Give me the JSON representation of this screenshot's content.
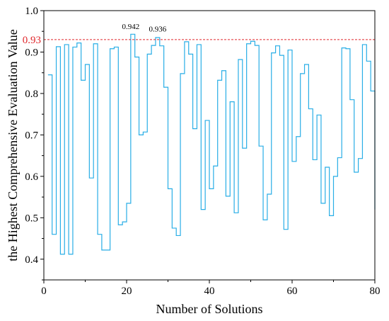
{
  "chart_data": {
    "type": "line",
    "step": true,
    "xlabel": "Number of Solutions",
    "ylabel": "the Highest Comprehensive Evaluation Value",
    "xlim": [
      0,
      80
    ],
    "ylim": [
      0.35,
      1.0
    ],
    "xticks": [
      "0",
      "20",
      "40",
      "60",
      "80"
    ],
    "yticks": [
      "0.4",
      "0.5",
      "0.6",
      "0.7",
      "0.8",
      "0.9",
      "1.0"
    ],
    "xtick_values": [
      0,
      20,
      40,
      60,
      80
    ],
    "ytick_values": [
      0.4,
      0.5,
      0.6,
      0.7,
      0.8,
      0.9,
      1.0
    ],
    "grid": false,
    "line_color": "#29aee6",
    "reference_line": {
      "value": 0.93,
      "label": "0.93",
      "color": "#e0282c"
    },
    "annotations": [
      {
        "text": "0.942",
        "x": 21,
        "y": 0.942
      },
      {
        "text": "0.936",
        "x": 27.5,
        "y": 0.936
      }
    ],
    "series": [
      {
        "x": [
          1,
          2,
          3,
          4,
          5,
          6,
          7,
          8,
          9,
          10,
          11,
          12,
          13,
          14,
          15,
          16,
          17,
          18,
          19,
          20,
          21,
          22,
          23,
          24,
          25,
          26,
          27,
          28,
          29,
          30,
          31,
          32,
          33,
          34,
          35,
          36,
          37,
          38,
          39,
          40,
          41,
          42,
          43,
          44,
          45,
          46,
          47,
          48,
          49,
          50,
          51,
          52,
          53,
          54,
          55,
          56,
          57,
          58,
          59,
          60,
          61,
          62,
          63,
          64,
          65,
          66,
          67,
          68,
          69,
          70,
          71,
          72,
          73,
          74,
          75,
          76,
          77,
          78,
          79,
          80
        ],
        "values": [
          0.845,
          0.46,
          0.913,
          0.412,
          0.918,
          0.412,
          0.912,
          0.922,
          0.832,
          0.87,
          0.596,
          0.92,
          0.46,
          0.422,
          0.422,
          0.908,
          0.912,
          0.483,
          0.49,
          0.535,
          0.943,
          0.888,
          0.7,
          0.707,
          0.895,
          0.916,
          0.935,
          0.915,
          0.815,
          0.57,
          0.475,
          0.457,
          0.848,
          0.925,
          0.895,
          0.715,
          0.918,
          0.52,
          0.735,
          0.57,
          0.625,
          0.832,
          0.855,
          0.552,
          0.78,
          0.512,
          0.882,
          0.668,
          0.92,
          0.926,
          0.916,
          0.673,
          0.495,
          0.557,
          0.898,
          0.915,
          0.892,
          0.472,
          0.905,
          0.636,
          0.696,
          0.848,
          0.87,
          0.763,
          0.64,
          0.748,
          0.535,
          0.622,
          0.505,
          0.6,
          0.645,
          0.91,
          0.908,
          0.785,
          0.61,
          0.643,
          0.918,
          0.878,
          0.806,
          0.52
        ]
      }
    ]
  }
}
